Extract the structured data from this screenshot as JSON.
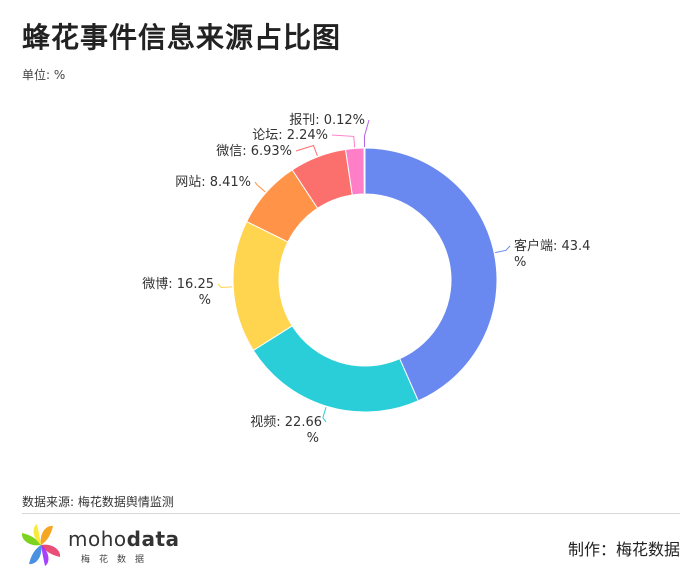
{
  "title": "蜂花事件信息来源占比图",
  "unit": "单位: %",
  "source": "数据来源: 梅花数据舆情监测",
  "maker": "制作：梅花数据",
  "brand": {
    "name_light": "moho",
    "name_bold": "data",
    "subtitle": "梅花数据"
  },
  "chart_data": {
    "type": "pie",
    "donut": true,
    "unit": "%",
    "slices": [
      {
        "label": "客户端",
        "value": 43.4,
        "color": "#6a89f0",
        "line1": "客户端: 43.4",
        "line2": "%"
      },
      {
        "label": "视频",
        "value": 22.66,
        "color": "#29ced8",
        "line1": "视频: 22.66",
        "line2": "%"
      },
      {
        "label": "微博",
        "value": 16.25,
        "color": "#ffd44f",
        "line1": "微博: 16.25",
        "line2": "%"
      },
      {
        "label": "网站",
        "value": 8.41,
        "color": "#ff9448",
        "line1": "网站: 8.41%",
        "line2": ""
      },
      {
        "label": "微信",
        "value": 6.93,
        "color": "#fb6f6c",
        "line1": "微信: 6.93%",
        "line2": ""
      },
      {
        "label": "论坛",
        "value": 2.24,
        "color": "#ff7ec8",
        "line1": "论坛: 2.24%",
        "line2": ""
      },
      {
        "label": "报刊",
        "value": 0.12,
        "color": "#b463e6",
        "line1": "报刊: 0.12%",
        "line2": ""
      }
    ]
  }
}
